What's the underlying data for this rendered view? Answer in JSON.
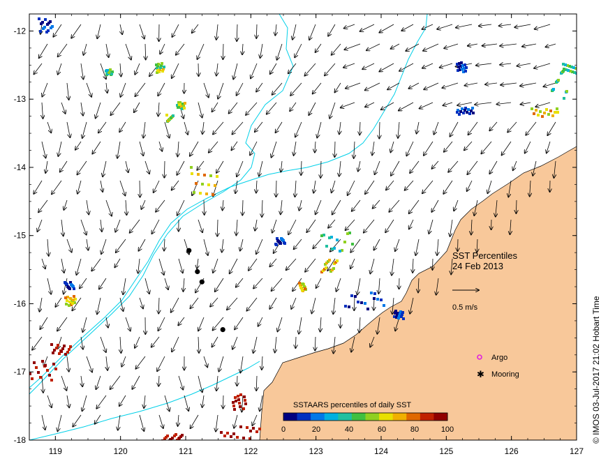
{
  "map": {
    "x_ticks": [
      "119",
      "120",
      "121",
      "122",
      "123",
      "124",
      "125",
      "126",
      "127"
    ],
    "y_ticks": [
      "-12",
      "-13",
      "-14",
      "-15",
      "-16",
      "-17",
      "-18"
    ],
    "lon_range": [
      118.6,
      127.0
    ],
    "lat_range": [
      -18.0,
      -11.75
    ]
  },
  "title": {
    "line1": "SST Percentiles",
    "line2": "24 Feb 2013"
  },
  "scale_arrow": {
    "label": "0.5 m/s"
  },
  "legend": {
    "argo_label": "Argo",
    "mooring_label": "Mooring",
    "argo_color": "#e020e0",
    "mooring_color": "#000000"
  },
  "colorbar": {
    "title": "SSTAARS percentiles of daily SST",
    "ticks": [
      "0",
      "20",
      "40",
      "60",
      "80",
      "100"
    ],
    "colors": [
      "#000080",
      "#0030c0",
      "#0078e8",
      "#00b0e0",
      "#20c0a0",
      "#40c040",
      "#90d020",
      "#e8e000",
      "#f0b000",
      "#e06800",
      "#c02000",
      "#900000"
    ]
  },
  "credit": "© IMOS 03-Jul-2017 21:02 Hobart Time",
  "colors": {
    "land": "#f8c89a",
    "contour": "#00d0e8",
    "moorings": "#000000"
  },
  "moorings": [
    {
      "lon": 121.05,
      "lat": -15.22
    },
    {
      "lon": 121.18,
      "lat": -15.53
    },
    {
      "lon": 121.25,
      "lat": -15.68
    },
    {
      "lon": 121.57,
      "lat": -16.38
    }
  ]
}
